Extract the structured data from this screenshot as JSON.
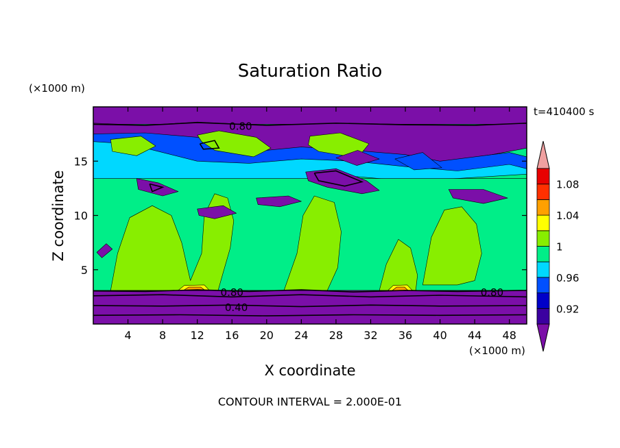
{
  "chart_data": {
    "type": "heatmap",
    "title": "Saturation Ratio",
    "time_label": "t=410400 s",
    "xlabel": "X coordinate",
    "ylabel": "Z coordinate",
    "x_unit": "(×1000 m)",
    "y_unit": "(×1000 m)",
    "footer": "CONTOUR INTERVAL = 2.000E-01",
    "xlim": [
      0,
      50
    ],
    "ylim": [
      0,
      20
    ],
    "x_ticks": [
      4,
      8,
      12,
      16,
      20,
      24,
      28,
      32,
      36,
      40,
      44,
      48
    ],
    "x_tick_labels": [
      "4",
      "8",
      "12",
      "16",
      "20",
      "24",
      "28",
      "32",
      "36",
      "40",
      "44",
      "48"
    ],
    "y_ticks": [
      5,
      10,
      15
    ],
    "y_tick_labels": [
      "5",
      "10",
      "15"
    ],
    "contour_labels": [
      {
        "text": "0.80",
        "x": 17.0,
        "y": 18.2
      },
      {
        "text": "0.80",
        "x": 16.0,
        "y": 2.9
      },
      {
        "text": "0.40",
        "x": 16.5,
        "y": 1.5
      },
      {
        "text": "0.80",
        "x": 46.0,
        "y": 2.9
      }
    ],
    "colorbar": {
      "levels": [
        0.9,
        0.92,
        0.94,
        0.96,
        0.98,
        1.0,
        1.02,
        1.04,
        1.06,
        1.08,
        1.1
      ],
      "colors": [
        "#7b0fa8",
        "#3b00a0",
        "#0000c8",
        "#0050ff",
        "#00d8ff",
        "#00ee88",
        "#88ee00",
        "#ffff00",
        "#ffa000",
        "#ff3000",
        "#e80000",
        "#f0a0a0"
      ],
      "tick_labels": [
        "0.92",
        "0.96",
        "1",
        "1.04",
        "1.08"
      ],
      "tick_values": [
        0.92,
        0.96,
        1.0,
        1.04,
        1.08
      ]
    },
    "palette": {
      "purple": "#7b0fa8",
      "dark_blue": "#3b00a0",
      "blue": "#0050ff",
      "cyan": "#00d8ff",
      "green": "#00ee88",
      "lime": "#88ee00",
      "yellow": "#ffff00",
      "orange": "#ffa000"
    },
    "regions": [
      {
        "color": "purple",
        "points": [
          [
            0,
            20
          ],
          [
            50,
            20
          ],
          [
            50,
            18.4
          ],
          [
            0,
            18.4
          ]
        ]
      },
      {
        "color": "purple",
        "points": [
          [
            0,
            0
          ],
          [
            50,
            0
          ],
          [
            50,
            3.1
          ],
          [
            0,
            3.1
          ]
        ]
      },
      {
        "color": "purple",
        "points": [
          [
            0,
            18.5
          ],
          [
            6,
            18.3
          ],
          [
            12,
            18.6
          ],
          [
            20,
            18.3
          ],
          [
            28,
            18.5
          ],
          [
            36,
            18.4
          ],
          [
            44,
            18.3
          ],
          [
            50,
            18.5
          ],
          [
            50,
            16.2
          ],
          [
            46,
            15.6
          ],
          [
            40,
            14.9
          ],
          [
            36,
            15.4
          ],
          [
            32,
            15.0
          ],
          [
            28,
            15.5
          ],
          [
            24,
            15.0
          ],
          [
            20,
            14.8
          ],
          [
            16,
            14.6
          ],
          [
            12,
            14.1
          ],
          [
            8,
            14.7
          ],
          [
            4,
            15.1
          ],
          [
            0,
            14.6
          ]
        ]
      },
      {
        "color": "blue",
        "points": [
          [
            0,
            17.5
          ],
          [
            6,
            17.6
          ],
          [
            12,
            17.2
          ],
          [
            16,
            16.4
          ],
          [
            20,
            16.0
          ],
          [
            24,
            16.3
          ],
          [
            30,
            16.0
          ],
          [
            36,
            15.6
          ],
          [
            40,
            15.0
          ],
          [
            44,
            15.4
          ],
          [
            48,
            15.8
          ],
          [
            50,
            15.4
          ],
          [
            50,
            14.3
          ],
          [
            44,
            14.0
          ],
          [
            38,
            13.6
          ],
          [
            32,
            14.0
          ],
          [
            26,
            13.6
          ],
          [
            20,
            13.2
          ],
          [
            14,
            12.6
          ],
          [
            8,
            13.4
          ],
          [
            4,
            14.2
          ],
          [
            0,
            13.8
          ]
        ]
      },
      {
        "color": "cyan",
        "points": [
          [
            0,
            16.8
          ],
          [
            4,
            16.6
          ],
          [
            8,
            15.8
          ],
          [
            12,
            15.0
          ],
          [
            18,
            14.8
          ],
          [
            24,
            15.2
          ],
          [
            30,
            15.0
          ],
          [
            36,
            14.5
          ],
          [
            42,
            14.1
          ],
          [
            48,
            14.7
          ],
          [
            50,
            14.3
          ],
          [
            50,
            13.8
          ],
          [
            42,
            13.4
          ],
          [
            36,
            13.2
          ],
          [
            30,
            13.6
          ],
          [
            24,
            13.1
          ],
          [
            18,
            12.8
          ],
          [
            12,
            12.4
          ],
          [
            6,
            12.9
          ],
          [
            0,
            13.2
          ]
        ]
      },
      {
        "color": "green",
        "points": [
          [
            0,
            13.4
          ],
          [
            50,
            13.4
          ],
          [
            50,
            3.1
          ],
          [
            0,
            3.1
          ]
        ]
      },
      {
        "color": "lime",
        "points": [
          [
            2,
            3.1
          ],
          [
            2.8,
            6.5
          ],
          [
            4.2,
            9.8
          ],
          [
            6.8,
            10.9
          ],
          [
            9.0,
            10.0
          ],
          [
            10.2,
            7.5
          ],
          [
            11.2,
            4.0
          ],
          [
            12.5,
            6.5
          ],
          [
            12.8,
            10.0
          ],
          [
            14.0,
            12.0
          ],
          [
            15.5,
            11.6
          ],
          [
            16.2,
            9.5
          ],
          [
            15.8,
            7.0
          ],
          [
            14.9,
            4.5
          ],
          [
            14.4,
            3.1
          ]
        ]
      },
      {
        "color": "lime",
        "points": [
          [
            22,
            3.1
          ],
          [
            23.5,
            6.5
          ],
          [
            24.2,
            10.0
          ],
          [
            25.5,
            11.8
          ],
          [
            27.8,
            11.2
          ],
          [
            28.6,
            8.5
          ],
          [
            28.2,
            5.2
          ],
          [
            27.0,
            3.1
          ]
        ]
      },
      {
        "color": "lime",
        "points": [
          [
            33,
            3.1
          ],
          [
            33.8,
            5.5
          ],
          [
            35.2,
            7.8
          ],
          [
            36.6,
            7.0
          ],
          [
            37.4,
            4.5
          ],
          [
            37.2,
            3.1
          ]
        ]
      },
      {
        "color": "lime",
        "points": [
          [
            38,
            3.6
          ],
          [
            39,
            8.0
          ],
          [
            40.5,
            10.5
          ],
          [
            42.5,
            10.8
          ],
          [
            44.2,
            9.2
          ],
          [
            44.8,
            6.5
          ],
          [
            44.0,
            4.0
          ],
          [
            42.0,
            3.6
          ]
        ]
      },
      {
        "color": "lime",
        "points": [
          [
            12,
            17.4
          ],
          [
            14.5,
            17.8
          ],
          [
            18.8,
            17.2
          ],
          [
            20.5,
            16.2
          ],
          [
            18.5,
            15.4
          ],
          [
            14.0,
            16.0
          ],
          [
            12.5,
            16.8
          ]
        ]
      },
      {
        "color": "lime",
        "points": [
          [
            25,
            17.3
          ],
          [
            28.5,
            17.6
          ],
          [
            31.8,
            16.6
          ],
          [
            30.5,
            15.3
          ],
          [
            26.0,
            15.9
          ],
          [
            24.8,
            16.5
          ]
        ]
      },
      {
        "color": "lime",
        "points": [
          [
            2,
            17.0
          ],
          [
            5.5,
            17.3
          ],
          [
            7.2,
            16.4
          ],
          [
            5.0,
            15.5
          ],
          [
            2.2,
            15.9
          ]
        ]
      },
      {
        "color": "purple",
        "points": [
          [
            24.5,
            14.0
          ],
          [
            28.0,
            14.3
          ],
          [
            31.5,
            13.2
          ],
          [
            33.0,
            12.3
          ],
          [
            31.0,
            12.0
          ],
          [
            27.0,
            12.6
          ],
          [
            24.8,
            13.2
          ]
        ]
      },
      {
        "color": "purple",
        "points": [
          [
            5.0,
            13.4
          ],
          [
            7.5,
            13.0
          ],
          [
            9.8,
            12.2
          ],
          [
            8.0,
            11.8
          ],
          [
            5.2,
            12.4
          ]
        ]
      },
      {
        "color": "purple",
        "points": [
          [
            12.0,
            10.6
          ],
          [
            15.0,
            10.9
          ],
          [
            16.5,
            10.2
          ],
          [
            14.0,
            9.7
          ],
          [
            12.2,
            10.0
          ]
        ]
      },
      {
        "color": "purple",
        "points": [
          [
            18.8,
            11.6
          ],
          [
            22.5,
            11.8
          ],
          [
            24.0,
            11.3
          ],
          [
            21.5,
            10.8
          ],
          [
            19.0,
            11.0
          ]
        ]
      },
      {
        "color": "purple",
        "points": [
          [
            41.0,
            12.4
          ],
          [
            45.0,
            12.4
          ],
          [
            47.8,
            11.6
          ],
          [
            45.0,
            11.1
          ],
          [
            41.5,
            11.6
          ]
        ]
      },
      {
        "color": "purple",
        "points": [
          [
            0.4,
            6.6
          ],
          [
            1.5,
            7.4
          ],
          [
            2.2,
            6.9
          ],
          [
            1.0,
            6.1
          ]
        ]
      },
      {
        "color": "purple",
        "points": [
          [
            28.0,
            15.3
          ],
          [
            30.5,
            16.0
          ],
          [
            33.0,
            15.2
          ],
          [
            30.4,
            14.6
          ]
        ]
      },
      {
        "color": "blue",
        "points": [
          [
            34.8,
            15.2
          ],
          [
            38.0,
            15.8
          ],
          [
            40.2,
            14.4
          ],
          [
            37.0,
            14.2
          ]
        ]
      },
      {
        "color": "yellow",
        "points": [
          [
            9.8,
            3.1
          ],
          [
            10.5,
            3.55
          ],
          [
            12.8,
            3.6
          ],
          [
            13.4,
            3.1
          ]
        ]
      },
      {
        "color": "orange",
        "points": [
          [
            10.4,
            3.1
          ],
          [
            11.0,
            3.4
          ],
          [
            12.4,
            3.4
          ],
          [
            12.9,
            3.1
          ]
        ]
      },
      {
        "color": "yellow",
        "points": [
          [
            34.0,
            3.1
          ],
          [
            34.6,
            3.55
          ],
          [
            36.2,
            3.6
          ],
          [
            36.8,
            3.1
          ]
        ]
      },
      {
        "color": "orange",
        "points": [
          [
            34.5,
            3.1
          ],
          [
            35.0,
            3.4
          ],
          [
            35.9,
            3.4
          ],
          [
            36.3,
            3.1
          ]
        ]
      }
    ],
    "contour_lines": [
      [
        [
          0,
          18.4
        ],
        [
          6,
          18.3
        ],
        [
          12,
          18.55
        ],
        [
          20,
          18.3
        ],
        [
          28,
          18.5
        ],
        [
          36,
          18.35
        ],
        [
          44,
          18.3
        ],
        [
          50,
          18.5
        ]
      ],
      [
        [
          0,
          3.05
        ],
        [
          6,
          3.0
        ],
        [
          12,
          3.15
        ],
        [
          18,
          3.0
        ],
        [
          24,
          3.15
        ],
        [
          30,
          2.95
        ],
        [
          36,
          3.1
        ],
        [
          42,
          3.0
        ],
        [
          50,
          3.1
        ]
      ],
      [
        [
          0,
          2.6
        ],
        [
          8,
          2.7
        ],
        [
          16,
          2.5
        ],
        [
          24,
          2.7
        ],
        [
          32,
          2.5
        ],
        [
          40,
          2.65
        ],
        [
          50,
          2.5
        ]
      ],
      [
        [
          0,
          1.7
        ],
        [
          8,
          1.65
        ],
        [
          16,
          1.75
        ],
        [
          24,
          1.6
        ],
        [
          32,
          1.75
        ],
        [
          40,
          1.65
        ],
        [
          50,
          1.7
        ]
      ],
      [
        [
          0,
          0.8
        ],
        [
          10,
          0.85
        ],
        [
          20,
          0.75
        ],
        [
          30,
          0.85
        ],
        [
          40,
          0.8
        ],
        [
          50,
          0.85
        ]
      ],
      [
        [
          25.5,
          13.9
        ],
        [
          28.0,
          14.1
        ],
        [
          31.0,
          13.1
        ],
        [
          29.0,
          12.7
        ],
        [
          26.0,
          13.2
        ],
        [
          25.5,
          13.9
        ]
      ],
      [
        [
          12.3,
          16.6
        ],
        [
          14.0,
          16.9
        ],
        [
          14.5,
          16.2
        ],
        [
          12.7,
          16.1
        ],
        [
          12.3,
          16.6
        ]
      ],
      [
        [
          6.5,
          12.9
        ],
        [
          8.0,
          12.6
        ],
        [
          6.8,
          12.2
        ],
        [
          6.5,
          12.9
        ]
      ]
    ]
  }
}
